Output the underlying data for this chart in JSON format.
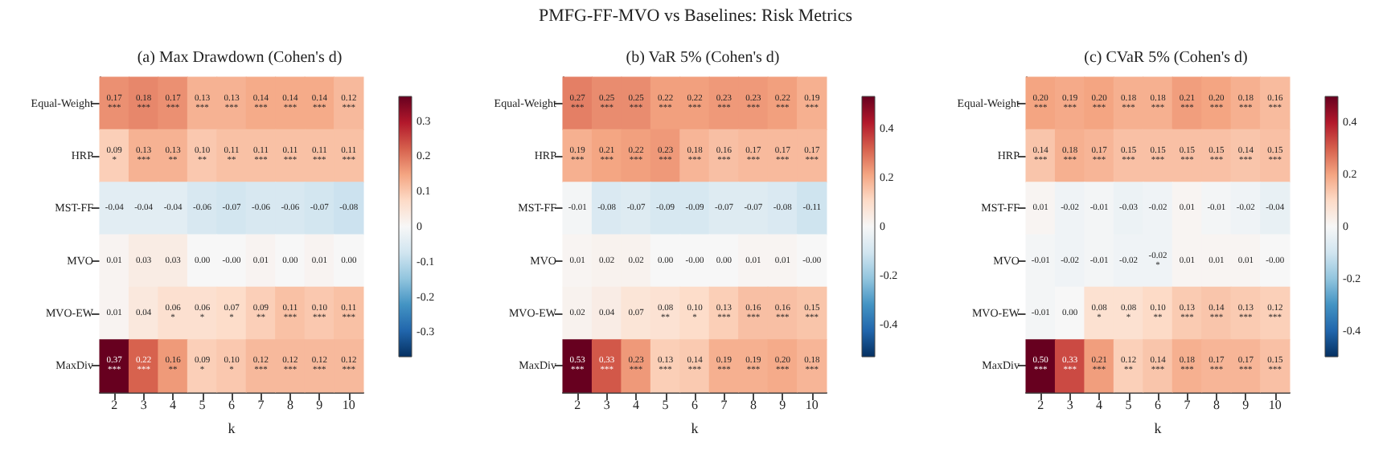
{
  "chart_data": [
    {
      "type": "heatmap",
      "title": "(a) Max Drawdown (Cohen's d)",
      "xlabel": "k",
      "annotations": [
        "PMFG-FF-MVO vs Baselines: Risk Metrics"
      ],
      "categories": [
        "2",
        "3",
        "4",
        "5",
        "6",
        "7",
        "8",
        "9",
        "10"
      ],
      "y_categories": [
        "Equal-Weight",
        "HRP",
        "MST-FF",
        "MVO",
        "MVO-EW",
        "MaxDiv"
      ],
      "cells": [
        [
          0.17,
          0.18,
          0.17,
          0.13,
          0.13,
          0.14,
          0.14,
          0.14,
          0.12
        ],
        [
          0.09,
          0.13,
          0.13,
          0.1,
          0.11,
          0.11,
          0.11,
          0.11,
          0.11
        ],
        [
          -0.04,
          -0.04,
          -0.04,
          -0.06,
          -0.07,
          -0.06,
          -0.06,
          -0.07,
          -0.08
        ],
        [
          0.01,
          0.03,
          0.03,
          0.0,
          0.0,
          0.01,
          0.0,
          0.01,
          0.0
        ],
        [
          0.01,
          0.04,
          0.06,
          0.06,
          0.07,
          0.09,
          0.11,
          0.1,
          0.11
        ],
        [
          0.37,
          0.22,
          0.16,
          0.09,
          0.1,
          0.12,
          0.12,
          0.12,
          0.12
        ]
      ],
      "cell_labels": [
        [
          "0.17\n***",
          "0.18\n***",
          "0.17\n***",
          "0.13\n***",
          "0.13\n***",
          "0.14\n***",
          "0.14\n***",
          "0.14\n***",
          "0.12\n***"
        ],
        [
          "0.09\n*",
          "0.13\n***",
          "0.13\n**",
          "0.10\n**",
          "0.11\n**",
          "0.11\n***",
          "0.11\n***",
          "0.11\n***",
          "0.11\n***"
        ],
        [
          "-0.04",
          "-0.04",
          "-0.04",
          "-0.06",
          "-0.07",
          "-0.06",
          "-0.06",
          "-0.07",
          "-0.08"
        ],
        [
          "0.01",
          "0.03",
          "0.03",
          "0.00",
          "-0.00",
          "0.01",
          "0.00",
          "0.01",
          "0.00"
        ],
        [
          "0.01",
          "0.04",
          "0.06\n*",
          "0.06\n*",
          "0.07\n*",
          "0.09\n**",
          "0.11\n***",
          "0.10\n***",
          "0.11\n***"
        ],
        [
          "0.37\n***",
          "0.22\n***",
          "0.16\n**",
          "0.09\n*",
          "0.10\n*",
          "0.12\n***",
          "0.12\n***",
          "0.12\n***",
          "0.12\n***"
        ]
      ],
      "clim": [
        -0.37,
        0.37
      ],
      "cticks": [
        -0.3,
        -0.2,
        -0.1,
        0.0,
        0.1,
        0.2,
        0.3
      ]
    },
    {
      "type": "heatmap",
      "title": "(b) VaR 5% (Cohen's d)",
      "xlabel": "k",
      "categories": [
        "2",
        "3",
        "4",
        "5",
        "6",
        "7",
        "8",
        "9",
        "10"
      ],
      "y_categories": [
        "Equal-Weight",
        "HRP",
        "MST-FF",
        "MVO",
        "MVO-EW",
        "MaxDiv"
      ],
      "cells": [
        [
          0.27,
          0.25,
          0.25,
          0.22,
          0.22,
          0.23,
          0.23,
          0.22,
          0.19
        ],
        [
          0.19,
          0.21,
          0.22,
          0.23,
          0.18,
          0.16,
          0.17,
          0.17,
          0.17
        ],
        [
          -0.01,
          -0.08,
          -0.07,
          -0.09,
          -0.09,
          -0.07,
          -0.07,
          -0.08,
          -0.11
        ],
        [
          0.01,
          0.02,
          0.02,
          0.0,
          0.0,
          0.0,
          0.01,
          0.01,
          0.0
        ],
        [
          0.02,
          0.04,
          0.07,
          0.08,
          0.1,
          0.13,
          0.16,
          0.16,
          0.15
        ],
        [
          0.53,
          0.33,
          0.23,
          0.13,
          0.14,
          0.19,
          0.19,
          0.2,
          0.18
        ]
      ],
      "cell_labels": [
        [
          "0.27\n***",
          "0.25\n***",
          "0.25\n***",
          "0.22\n***",
          "0.22\n***",
          "0.23\n***",
          "0.23\n***",
          "0.22\n***",
          "0.19\n***"
        ],
        [
          "0.19\n***",
          "0.21\n***",
          "0.22\n***",
          "0.23\n***",
          "0.18\n***",
          "0.16\n***",
          "0.17\n***",
          "0.17\n***",
          "0.17\n***"
        ],
        [
          "-0.01",
          "-0.08",
          "-0.07",
          "-0.09",
          "-0.09",
          "-0.07",
          "-0.07",
          "-0.08",
          "-0.11"
        ],
        [
          "0.01",
          "0.02",
          "0.02",
          "0.00",
          "-0.00",
          "0.00",
          "0.01",
          "0.01",
          "-0.00"
        ],
        [
          "0.02",
          "0.04",
          "0.07",
          "0.08\n**",
          "0.10\n*",
          "0.13\n***",
          "0.16\n***",
          "0.16\n***",
          "0.15\n***"
        ],
        [
          "0.53\n***",
          "0.33\n***",
          "0.23\n***",
          "0.13\n***",
          "0.14\n***",
          "0.19\n***",
          "0.19\n***",
          "0.20\n***",
          "0.18\n***"
        ]
      ],
      "clim": [
        -0.53,
        0.53
      ],
      "cticks": [
        -0.4,
        -0.2,
        0.0,
        0.2,
        0.4
      ]
    },
    {
      "type": "heatmap",
      "title": "(c) CVaR 5% (Cohen's d)",
      "xlabel": "k",
      "categories": [
        "2",
        "3",
        "4",
        "5",
        "6",
        "7",
        "8",
        "9",
        "10"
      ],
      "y_categories": [
        "Equal-Weight",
        "HRP",
        "MST-FF",
        "MVO",
        "MVO-EW",
        "MaxDiv"
      ],
      "cells": [
        [
          0.2,
          0.19,
          0.2,
          0.18,
          0.18,
          0.21,
          0.2,
          0.18,
          0.16
        ],
        [
          0.14,
          0.18,
          0.17,
          0.15,
          0.15,
          0.15,
          0.15,
          0.14,
          0.15
        ],
        [
          0.01,
          -0.02,
          -0.01,
          -0.03,
          -0.02,
          0.01,
          -0.01,
          -0.02,
          -0.04
        ],
        [
          -0.01,
          -0.02,
          -0.01,
          -0.02,
          -0.02,
          0.01,
          0.01,
          0.01,
          0.0
        ],
        [
          -0.01,
          0.0,
          0.08,
          0.08,
          0.1,
          0.13,
          0.14,
          0.13,
          0.12
        ],
        [
          0.5,
          0.33,
          0.21,
          0.12,
          0.14,
          0.18,
          0.17,
          0.17,
          0.15
        ]
      ],
      "cell_labels": [
        [
          "0.20\n***",
          "0.19\n***",
          "0.20\n***",
          "0.18\n***",
          "0.18\n***",
          "0.21\n***",
          "0.20\n***",
          "0.18\n***",
          "0.16\n***"
        ],
        [
          "0.14\n***",
          "0.18\n***",
          "0.17\n***",
          "0.15\n***",
          "0.15\n***",
          "0.15\n***",
          "0.15\n***",
          "0.14\n***",
          "0.15\n***"
        ],
        [
          "0.01",
          "-0.02",
          "-0.01",
          "-0.03",
          "-0.02",
          "0.01",
          "-0.01",
          "-0.02",
          "-0.04"
        ],
        [
          "-0.01",
          "-0.02",
          "-0.01",
          "-0.02",
          "-0.02\n*",
          "0.01",
          "0.01",
          "0.01",
          "-0.00"
        ],
        [
          "-0.01",
          "0.00",
          "0.08\n*",
          "0.08\n*",
          "0.10\n**",
          "0.13\n***",
          "0.14\n***",
          "0.13\n***",
          "0.12\n***"
        ],
        [
          "0.50\n***",
          "0.33\n***",
          "0.21\n***",
          "0.12\n**",
          "0.14\n***",
          "0.18\n***",
          "0.17\n***",
          "0.17\n***",
          "0.15\n***"
        ]
      ],
      "clim": [
        -0.5,
        0.5
      ],
      "cticks": [
        -0.4,
        -0.2,
        0.0,
        0.2,
        0.4
      ]
    }
  ]
}
